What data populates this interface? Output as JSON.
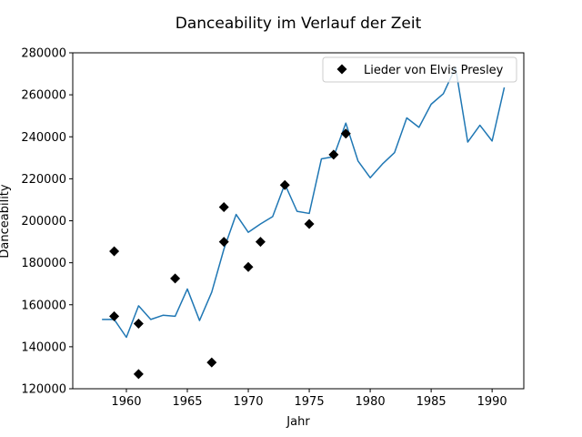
{
  "chart_data": {
    "type": "line",
    "title": "Danceability im Verlauf der Zeit",
    "xlabel": "Jahr",
    "ylabel": "Danceability",
    "xlim": [
      1955.6,
      1992.6
    ],
    "ylim": [
      120000,
      280000
    ],
    "xticks": [
      1960,
      1965,
      1970,
      1975,
      1980,
      1985,
      1990
    ],
    "yticks": [
      120000,
      140000,
      160000,
      180000,
      200000,
      220000,
      240000,
      260000,
      280000
    ],
    "grid": false,
    "legend_position": "top-right",
    "series": [
      {
        "kind": "line",
        "color": "#1f77b4",
        "x": [
          1958,
          1959,
          1960,
          1961,
          1962,
          1963,
          1964,
          1965,
          1966,
          1967,
          1968,
          1969,
          1970,
          1971,
          1972,
          1973,
          1974,
          1975,
          1976,
          1977,
          1978,
          1979,
          1980,
          1981,
          1982,
          1983,
          1984,
          1985,
          1986,
          1987,
          1988,
          1989,
          1990,
          1991
        ],
        "y": [
          153000,
          153000,
          144500,
          159500,
          153000,
          155000,
          154500,
          167500,
          152500,
          166000,
          186500,
          203000,
          194500,
          198500,
          202000,
          217500,
          204500,
          203500,
          229500,
          230500,
          246500,
          228500,
          220500,
          227000,
          232500,
          249000,
          244500,
          255500,
          260500,
          273000,
          237500,
          245500,
          238000,
          263500
        ]
      },
      {
        "kind": "scatter",
        "name": "Lieder von Elvis Presley",
        "color": "#000000",
        "marker": "diamond",
        "points": [
          [
            1959,
            185500
          ],
          [
            1959,
            154500
          ],
          [
            1961,
            151000
          ],
          [
            1961,
            127000
          ],
          [
            1964,
            172500
          ],
          [
            1967,
            132500
          ],
          [
            1968,
            206500
          ],
          [
            1968,
            190000
          ],
          [
            1970,
            178000
          ],
          [
            1971,
            190000
          ],
          [
            1973,
            217000
          ],
          [
            1975,
            198500
          ],
          [
            1977,
            231500
          ],
          [
            1978,
            241500
          ]
        ]
      }
    ]
  }
}
